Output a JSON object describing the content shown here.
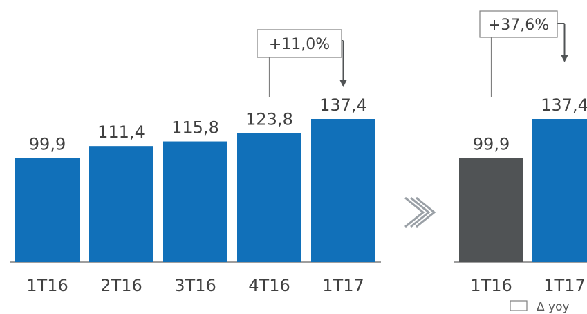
{
  "chart_data": [
    {
      "type": "bar",
      "categories": [
        "1T16",
        "2T16",
        "3T16",
        "4T16",
        "1T17"
      ],
      "values": [
        99.9,
        111.4,
        115.8,
        123.8,
        137.4
      ],
      "value_labels": [
        "99,9",
        "111,4",
        "115,8",
        "123,8",
        "137,4"
      ],
      "colors": [
        "#1170b9",
        "#1170b9",
        "#1170b9",
        "#1170b9",
        "#1170b9"
      ],
      "annotation": {
        "text": "+11,0%",
        "from_category": "4T16",
        "to_category": "1T17"
      }
    },
    {
      "type": "bar",
      "categories": [
        "1T16",
        "1T17"
      ],
      "values": [
        99.9,
        137.4
      ],
      "value_labels": [
        "99,9",
        "137,4"
      ],
      "colors": [
        "#505355",
        "#1170b9"
      ],
      "annotation": {
        "text": "+37,6%",
        "from_category": "1T16",
        "to_category": "1T17"
      }
    }
  ],
  "separator_glyph": "»",
  "legend": {
    "label": "Δ yoy"
  },
  "colors": {
    "blue": "#1170b9",
    "dark_gray": "#505355",
    "text": "#404040",
    "axis": "#7f7f7f"
  }
}
